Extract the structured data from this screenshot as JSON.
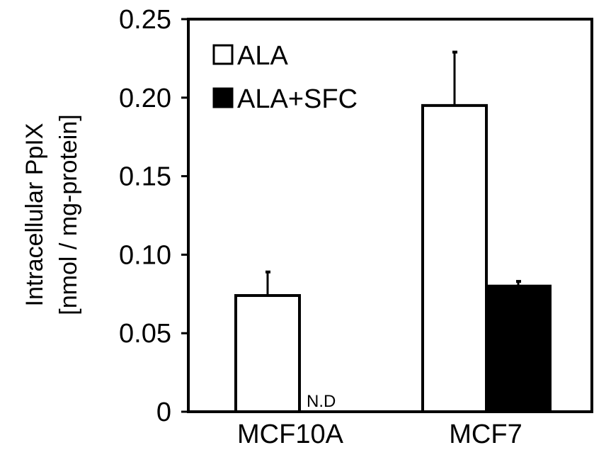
{
  "chart_data": {
    "type": "bar",
    "title": "",
    "xlabel": "",
    "ylabel": "Intracellular PpIX",
    "ylabel_unit": "[nmol / mg-protein]",
    "categories": [
      "MCF10A",
      "MCF7"
    ],
    "series": [
      {
        "name": "ALA",
        "values": [
          0.074,
          0.195
        ],
        "errors": [
          0.015,
          0.034
        ],
        "fill": "#ffffff"
      },
      {
        "name": "ALA+SFC",
        "values": [
          0,
          0.08
        ],
        "errors": [
          0,
          0.003
        ],
        "fill": "#000000"
      }
    ],
    "ylim": [
      0,
      0.25
    ],
    "yticks": [
      0,
      0.05,
      0.1,
      0.15,
      0.2,
      0.25
    ],
    "ytick_labels": [
      "0",
      "0.05",
      "0.10",
      "0.15",
      "0.20",
      "0.25"
    ],
    "legend_position": "top-left",
    "grid": false,
    "annotations": [
      {
        "text": "N.D",
        "category": "MCF10A",
        "series": "ALA+SFC"
      }
    ]
  }
}
